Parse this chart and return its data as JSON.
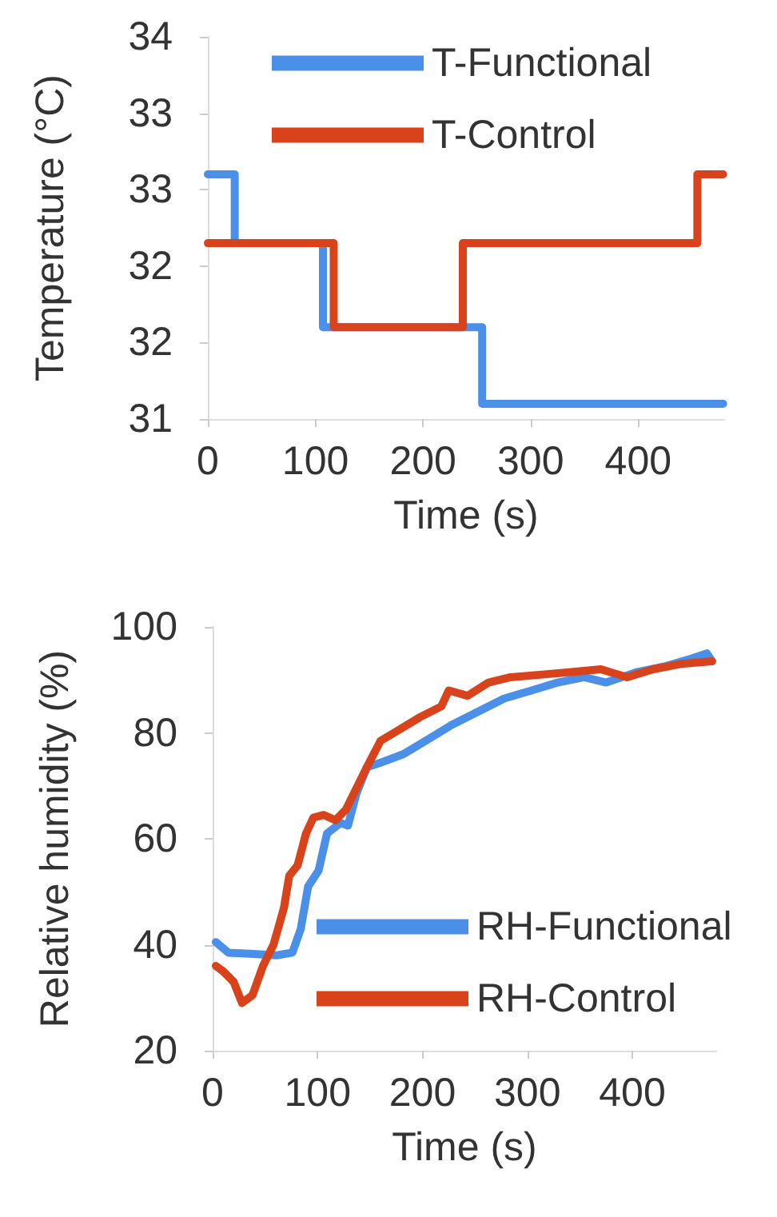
{
  "chart_data": [
    {
      "type": "step",
      "xlabel": "Time (s)",
      "ylabel": "Temperature (°C)",
      "xlim": [
        0,
        480
      ],
      "xticks": [
        0,
        100,
        200,
        300,
        400
      ],
      "ylim": [
        31,
        33.5
      ],
      "yticks": [
        31,
        {
          "value": 31.5,
          "label": "32"
        },
        32,
        {
          "value": 32.5,
          "label": "33"
        },
        33,
        {
          "value": 33.5,
          "label": "34"
        }
      ],
      "grid": false,
      "legend": "top right",
      "marker": "none",
      "line_style": "solid",
      "series": [
        {
          "name": "T-Functional",
          "color": "#4a90e8",
          "x": [
            0,
            25,
            107,
            255,
            479
          ],
          "values": [
            32.6,
            32.15,
            31.6,
            31.1,
            31.1
          ]
        },
        {
          "name": "T-Control",
          "color": "#d8431c",
          "x": [
            0,
            117,
            237,
            455,
            479
          ],
          "values": [
            32.15,
            31.6,
            32.15,
            32.6,
            32.6
          ]
        }
      ]
    },
    {
      "type": "line",
      "xlabel": "Time (s)",
      "ylabel": "Relative humidity (%)",
      "xlim": [
        0,
        480
      ],
      "xticks": [
        0,
        100,
        200,
        300,
        400
      ],
      "ylim": [
        20,
        100
      ],
      "yticks": [
        20,
        40,
        60,
        80,
        100
      ],
      "grid": false,
      "legend": "bottom right",
      "marker": "none",
      "line_style": "solid",
      "series": [
        {
          "name": "RH-Functional",
          "color": "#4a90e8",
          "x": [
            3,
            15,
            35,
            61,
            76,
            84,
            91,
            101,
            109,
            122,
            129,
            137,
            147,
            162,
            182,
            203,
            228,
            253,
            278,
            304,
            329,
            354,
            375,
            405,
            430,
            456,
            471,
            476
          ],
          "values": [
            40.5,
            38.5,
            38.3,
            38,
            38.5,
            43,
            51,
            54,
            61,
            63,
            62.5,
            68.5,
            73.5,
            74.5,
            76,
            78.5,
            81.5,
            84,
            86.5,
            88,
            89.5,
            90.5,
            89.5,
            91.5,
            92.5,
            94,
            95,
            93.5
          ]
        },
        {
          "name": "RH-Control",
          "color": "#d8431c",
          "x": [
            3,
            10,
            20,
            28,
            38,
            48,
            58,
            68,
            73,
            81,
            89,
            96,
            106,
            117,
            127,
            137,
            147,
            160,
            177,
            198,
            218,
            225,
            243,
            263,
            284,
            314,
            344,
            370,
            395,
            420,
            446,
            476
          ],
          "values": [
            36,
            35,
            33,
            29,
            30.5,
            36,
            40,
            47,
            53,
            55,
            61,
            64,
            64.5,
            63.5,
            65.5,
            69.5,
            73.5,
            78.5,
            80.5,
            83,
            85,
            88,
            87,
            89.5,
            90.5,
            91,
            91.5,
            92,
            90.5,
            92,
            93,
            93.5
          ]
        }
      ]
    }
  ]
}
